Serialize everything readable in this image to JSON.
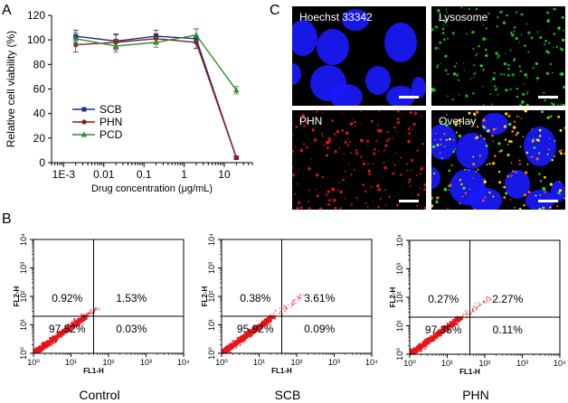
{
  "panels": {
    "a": "A",
    "b": "B",
    "c": "C"
  },
  "chart_data": [
    {
      "type": "line",
      "xlabel": "Drug concentration (μg/mL)",
      "ylabel": "Relative cell viability (%)",
      "x_scale": "log",
      "xlim": [
        0.0005,
        50
      ],
      "ylim": [
        0,
        120
      ],
      "xticks": [
        {
          "v": 0.001,
          "label": "1E-3"
        },
        {
          "v": 0.01,
          "label": "0.01"
        },
        {
          "v": 0.1,
          "label": "0.1"
        },
        {
          "v": 1,
          "label": "1"
        },
        {
          "v": 10,
          "label": "10"
        }
      ],
      "yticks": [
        0,
        20,
        40,
        60,
        80,
        100,
        120
      ],
      "x": [
        0.002,
        0.02,
        0.2,
        2,
        20
      ],
      "legend_position": "bottom-left",
      "series": [
        {
          "name": "SCB",
          "color": "#1f2d8c",
          "marker": "square",
          "values": [
            103,
            99,
            103,
            101,
            4
          ],
          "errors": [
            5,
            6,
            5,
            8,
            1
          ]
        },
        {
          "name": "PHN",
          "color": "#8b1a1a",
          "marker": "circle",
          "values": [
            96,
            98,
            101,
            98,
            4
          ],
          "errors": [
            6,
            6,
            4,
            5,
            1
          ]
        },
        {
          "name": "PCD",
          "color": "#2e8b2e",
          "marker": "triangle",
          "values": [
            101,
            95,
            98,
            104,
            59
          ],
          "errors": [
            5,
            5,
            4,
            5,
            3
          ]
        }
      ]
    },
    {
      "type": "scatter",
      "xlabel": "FL1-H",
      "ylabel": "FL2-H",
      "x_scale": "log",
      "y_scale": "log",
      "xlim": [
        1,
        10000
      ],
      "ylim": [
        1,
        10000
      ],
      "tick_labels": [
        "10⁰",
        "10¹",
        "10²",
        "10³",
        "10⁴"
      ],
      "point_color": "#e8141c",
      "plots": [
        {
          "title": "Control",
          "quadrants": {
            "upper_left": "0.92%",
            "upper_right": "1.53%",
            "lower_left": "97.52%",
            "lower_right": "0.03%"
          }
        },
        {
          "title": "SCB",
          "quadrants": {
            "upper_left": "0.38%",
            "upper_right": "3.61%",
            "lower_left": "95.92%",
            "lower_right": "0.09%"
          }
        },
        {
          "title": "PHN",
          "quadrants": {
            "upper_left": "0.27%",
            "upper_right": "2.27%",
            "lower_left": "97.35%",
            "lower_right": "0.11%"
          }
        }
      ]
    }
  ],
  "micrographs": [
    {
      "label": "Hoechst 33342",
      "channel": "blue"
    },
    {
      "label": "Lysosome",
      "channel": "green"
    },
    {
      "label": "PHN",
      "channel": "red"
    },
    {
      "label": "Overlay",
      "channel": "overlay"
    }
  ]
}
